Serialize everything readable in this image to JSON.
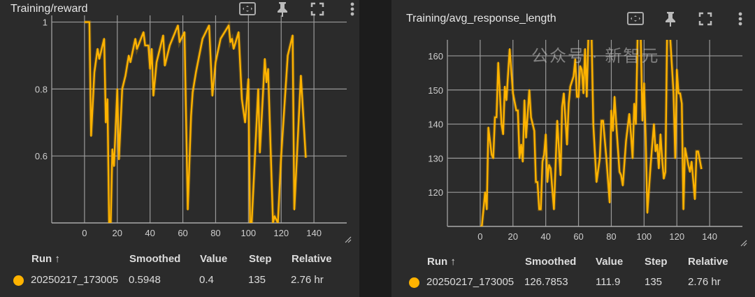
{
  "accent_color": "#ffb300",
  "watermark": "公众号 · 新智元",
  "table_headers": {
    "run": "Run ↑",
    "smoothed": "Smoothed",
    "value": "Value",
    "step": "Step",
    "relative": "Relative"
  },
  "icons": [
    "fit-domain-icon",
    "pin-icon",
    "fullscreen-icon",
    "more-vert-icon"
  ],
  "chart_data": [
    {
      "type": "line",
      "title": "Training/reward",
      "xticks": [
        0,
        20,
        40,
        60,
        80,
        100,
        120,
        140
      ],
      "yticks": [
        0.6,
        0.8,
        1
      ],
      "ytick_labels": [
        "0.6",
        "0.8",
        "1"
      ],
      "xlim": [
        -20,
        160
      ],
      "ylim": [
        0.4,
        1.02
      ],
      "grid": true,
      "series": [
        {
          "name": "20250217_173005",
          "color": "#ffb300",
          "x": [
            0,
            3,
            4,
            6,
            8,
            9,
            12,
            13,
            14,
            15,
            16,
            17,
            18,
            20,
            21,
            23,
            25,
            27,
            28,
            31,
            32,
            36,
            37,
            39,
            40,
            41,
            42,
            44,
            48,
            49,
            52,
            57,
            58,
            59,
            61,
            63,
            65,
            66,
            68,
            72,
            76,
            78,
            80,
            83,
            88,
            89,
            90,
            91,
            94,
            96,
            98,
            100,
            101,
            102,
            106,
            107,
            110,
            111,
            112,
            115,
            116,
            118,
            120,
            124,
            127,
            128,
            132,
            135
          ],
          "y": [
            1,
            1,
            0.66,
            0.85,
            0.92,
            0.89,
            0.95,
            0.7,
            0.77,
            0.4,
            0.4,
            0.62,
            0.57,
            0.8,
            0.59,
            0.8,
            0.84,
            0.9,
            0.88,
            0.95,
            0.92,
            0.97,
            0.93,
            0.93,
            0.86,
            0.92,
            0.78,
            0.88,
            0.96,
            0.87,
            0.93,
            0.99,
            0.94,
            0.95,
            0.97,
            0.44,
            0.72,
            0.79,
            0.85,
            0.95,
            0.99,
            0.78,
            0.88,
            0.95,
            0.99,
            0.94,
            0.95,
            0.92,
            0.97,
            0.77,
            0.7,
            0.83,
            0.4,
            0.4,
            0.8,
            0.61,
            0.89,
            0.82,
            0.86,
            0.4,
            0.42,
            0.4,
            0.6,
            0.9,
            0.96,
            0.44,
            0.84,
            0.5948
          ]
        }
      ],
      "legend": {
        "run": "20250217_173005",
        "smoothed": "0.5948",
        "value": "0.4",
        "step": "135",
        "relative": "2.76 hr"
      }
    },
    {
      "type": "line",
      "title": "Training/avg_response_length",
      "xticks": [
        0,
        20,
        40,
        60,
        80,
        100,
        120,
        140
      ],
      "yticks": [
        120,
        130,
        140,
        150,
        160
      ],
      "ytick_labels": [
        "120",
        "130",
        "140",
        "150",
        "160"
      ],
      "xlim": [
        -20,
        160
      ],
      "ylim": [
        110,
        164.7
      ],
      "grid": true,
      "series": [
        {
          "name": "20250217_173005",
          "color": "#ffb300",
          "x": [
            0,
            1,
            2,
            3,
            4,
            5,
            7,
            8,
            9,
            10,
            11,
            13,
            14,
            15,
            16,
            18,
            20,
            22,
            23,
            24,
            25,
            26,
            27,
            28,
            30,
            31,
            33,
            34,
            35,
            36,
            37,
            38,
            39,
            40,
            41,
            42,
            43,
            45,
            47,
            49,
            50,
            51,
            53,
            54,
            55,
            57,
            58,
            59,
            60,
            61,
            62,
            63,
            64,
            65,
            66,
            68,
            69,
            71,
            73,
            74,
            75,
            77,
            79,
            80,
            81,
            82,
            83,
            85,
            86,
            87,
            89,
            91,
            92,
            93,
            94,
            95,
            96,
            98,
            99,
            100,
            101,
            102,
            104,
            106,
            107,
            108,
            109,
            110,
            111,
            112,
            113,
            114,
            116,
            118,
            119,
            120,
            121,
            122,
            123,
            124,
            125,
            127,
            128,
            129,
            131,
            132,
            133,
            135
          ],
          "y": [
            110,
            110,
            115,
            120,
            115,
            139,
            131,
            130,
            142,
            142,
            158,
            140,
            137,
            151,
            147,
            162,
            149,
            144,
            144,
            130,
            134,
            129,
            147,
            136,
            150,
            142,
            138,
            123,
            123,
            115,
            115,
            129,
            131,
            137,
            123,
            128,
            127,
            115,
            141,
            125,
            145,
            149,
            134,
            146,
            151,
            154,
            159,
            148,
            148,
            157,
            156,
            149,
            162,
            148,
            165,
            165,
            140,
            123,
            130,
            141,
            141,
            130,
            117,
            144,
            138,
            148,
            140,
            126,
            125,
            122,
            135,
            143,
            137,
            130,
            146,
            140,
            165,
            165,
            141,
            152,
            135,
            114,
            128,
            140,
            132,
            134,
            127,
            137,
            130,
            124,
            126,
            165,
            165,
            149,
            130,
            156,
            149,
            149,
            146,
            115,
            133,
            128,
            126,
            129,
            118,
            132,
            132,
            126.79
          ]
        }
      ],
      "legend": {
        "run": "20250217_173005",
        "smoothed": "126.7853",
        "value": "111.9",
        "step": "135",
        "relative": "2.76 hr"
      }
    }
  ]
}
